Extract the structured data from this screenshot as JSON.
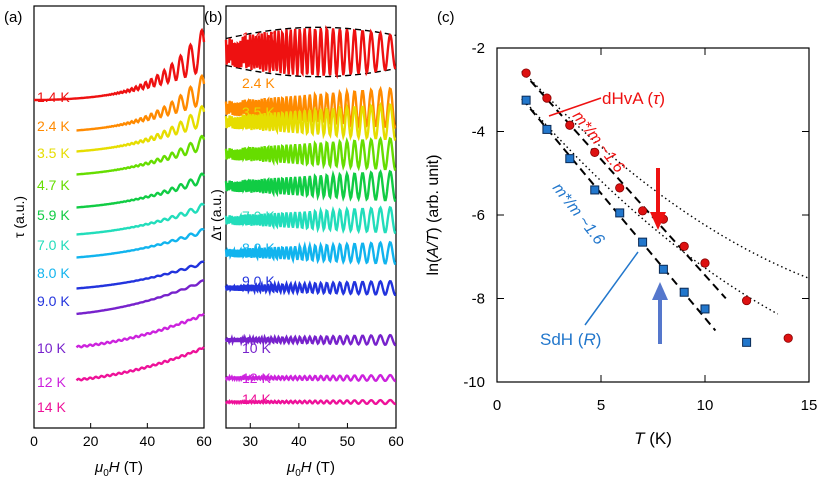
{
  "panels": {
    "a": {
      "tag": "(a)",
      "ylabel": "τ (a.u.)",
      "xlabel_sym": "μ",
      "xlabel_sub": "0",
      "xlabel_H": "H",
      "xlabel_unit": " (T)"
    },
    "b": {
      "tag": "(b)",
      "ylabel": "Δτ (a.u.)",
      "xlabel_sym": "μ",
      "xlabel_sub": "0",
      "xlabel_H": "H",
      "xlabel_unit": " (T)"
    },
    "c": {
      "tag": "(c)",
      "ylabel_pre": "ln(",
      "ylabel_it": "A/T",
      "ylabel_post": ") (arb. unit)",
      "xlabel_it": "T",
      "xlabel_unit": " (K)"
    }
  },
  "annotations": {
    "dhva_pre": "dHvA (",
    "dhva_it": "τ",
    "dhva_post": ")",
    "sdh_pre": "SdH (",
    "sdh_it": "R",
    "sdh_post": ")",
    "mass_red": "m*/m ~1.6",
    "mass_blue": "m*/m ~1.6"
  },
  "chart_data": [
    {
      "type": "line",
      "title": "",
      "xlabel": "μ0H (T)",
      "ylabel": "τ (a.u.)",
      "xlim": [
        0,
        60
      ],
      "xticks": [
        0,
        20,
        40,
        60
      ],
      "grid": false,
      "series": [
        {
          "name": "1.4 K",
          "color": "#ee1111"
        },
        {
          "name": "2.4 K",
          "color": "#ff8a00"
        },
        {
          "name": "3.5 K",
          "color": "#e6dd00"
        },
        {
          "name": "4.7 K",
          "color": "#66dd00"
        },
        {
          "name": "5.9 K",
          "color": "#11cc44"
        },
        {
          "name": "7.0 K",
          "color": "#22ddbb"
        },
        {
          "name": "8.0 K",
          "color": "#11b4ee"
        },
        {
          "name": "9.0 K",
          "color": "#2233dd"
        },
        {
          "name": "10 K",
          "color": "#7722cc"
        },
        {
          "name": "12 K",
          "color": "#cc22dd"
        },
        {
          "name": "14 K",
          "color": "#ee1199"
        }
      ]
    },
    {
      "type": "line",
      "title": "",
      "xlabel": "μ0H (T)",
      "ylabel": "Δτ (a.u.)",
      "xlim": [
        25,
        60
      ],
      "xticks": [
        30,
        40,
        50,
        60
      ],
      "grid": false,
      "series": [
        {
          "name": "1.4 K",
          "color": "#ee1111"
        },
        {
          "name": "2.4 K",
          "color": "#ff8a00"
        },
        {
          "name": "3.5 K",
          "color": "#e6dd00"
        },
        {
          "name": "4.7 K",
          "color": "#66dd00"
        },
        {
          "name": "5.9 K",
          "color": "#11cc44"
        },
        {
          "name": "7.0 K",
          "color": "#22ddbb"
        },
        {
          "name": "8.0 K",
          "color": "#11b4ee"
        },
        {
          "name": "9.0 K",
          "color": "#2233dd"
        },
        {
          "name": "10 K",
          "color": "#7722cc"
        },
        {
          "name": "12 K",
          "color": "#cc22dd"
        },
        {
          "name": "14 K",
          "color": "#ee1199"
        }
      ]
    },
    {
      "type": "scatter",
      "title": "",
      "xlabel": "T (K)",
      "ylabel": "ln(A/T) (arb. unit)",
      "xlim": [
        0,
        15
      ],
      "ylim": [
        -10,
        -2
      ],
      "xticks": [
        0,
        5,
        10,
        15
      ],
      "yticks": [
        -2,
        -4,
        -6,
        -8,
        -10
      ],
      "grid": false,
      "series": [
        {
          "name": "dHvA (τ)",
          "color": "#dd1111",
          "marker": "circle",
          "x": [
            1.4,
            2.4,
            3.5,
            4.7,
            5.9,
            7.0,
            8.0,
            9.0,
            10,
            12,
            14
          ],
          "y": [
            -2.6,
            -3.2,
            -3.85,
            -4.5,
            -5.35,
            -5.9,
            -6.1,
            -6.75,
            -7.15,
            -8.05,
            -8.95
          ]
        },
        {
          "name": "SdH (R)",
          "color": "#2277cc",
          "marker": "square",
          "x": [
            1.4,
            2.4,
            3.5,
            4.7,
            5.9,
            7.0,
            8.0,
            9.0,
            10,
            12
          ],
          "y": [
            -3.25,
            -3.95,
            -4.65,
            -5.4,
            -5.95,
            -6.65,
            -7.3,
            -7.85,
            -8.25,
            -9.05
          ]
        }
      ]
    }
  ]
}
